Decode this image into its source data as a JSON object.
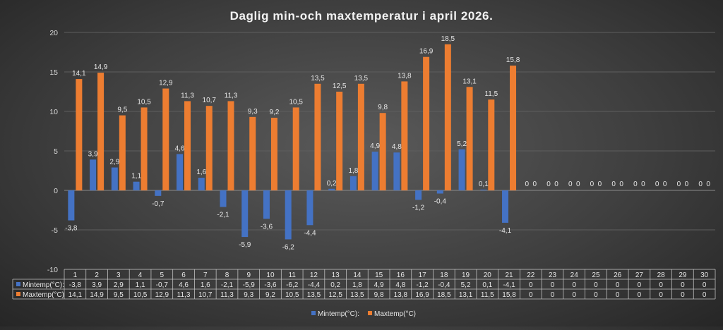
{
  "chart_data": {
    "type": "bar",
    "title": "Daglig min-och maxtemperatur i april 2026.",
    "categories": [
      "1",
      "2",
      "3",
      "4",
      "5",
      "6",
      "7",
      "8",
      "9",
      "10",
      "11",
      "12",
      "13",
      "14",
      "15",
      "16",
      "17",
      "18",
      "19",
      "20",
      "21",
      "22",
      "23",
      "24",
      "25",
      "26",
      "27",
      "28",
      "29",
      "30"
    ],
    "ylim": [
      -10,
      20
    ],
    "yticks": [
      -10,
      -5,
      0,
      5,
      10,
      15,
      20
    ],
    "grid": true,
    "legend_position": "bottom",
    "data_table": true,
    "decimal_separator": ",",
    "series": [
      {
        "name": "Mintemp(°C):",
        "table_label": "Mintemp(°C):",
        "color": "#4472C4",
        "values": [
          -3.8,
          3.9,
          2.9,
          1.1,
          -0.7,
          4.6,
          1.6,
          -2.1,
          -5.9,
          -3.6,
          -6.2,
          -4.4,
          0.2,
          1.8,
          4.9,
          4.8,
          -1.2,
          -0.4,
          5.2,
          0.1,
          -4.1,
          0,
          0,
          0,
          0,
          0,
          0,
          0,
          0,
          0
        ]
      },
      {
        "name": "Maxtemp(°C)",
        "table_label": "Maxtemp(°C)",
        "color": "#ED7D31",
        "values": [
          14.1,
          14.9,
          9.5,
          10.5,
          12.9,
          11.3,
          10.7,
          11.3,
          9.3,
          9.2,
          10.5,
          13.5,
          12.5,
          13.5,
          9.8,
          13.8,
          16.9,
          18.5,
          13.1,
          11.5,
          15.8,
          0,
          0,
          0,
          0,
          0,
          0,
          0,
          0,
          0
        ]
      }
    ]
  }
}
